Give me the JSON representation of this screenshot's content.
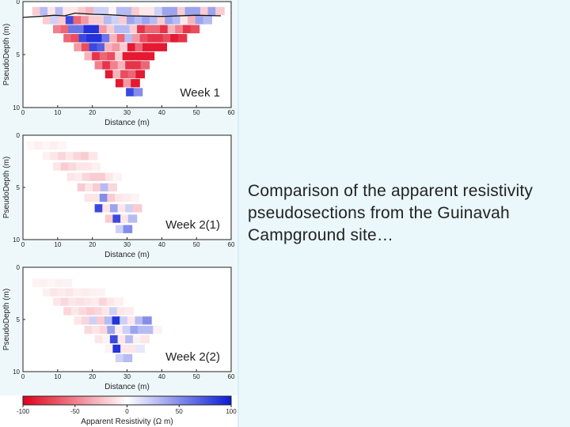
{
  "caption": "Comparison of the apparent resistivity pseudosections from the Guinavah Campground site…",
  "axes": {
    "ylabel": "PseudoDepth (m)",
    "xlabel": "Distance (m)",
    "xticks": [
      "0",
      "10",
      "20",
      "30",
      "40",
      "50",
      "60"
    ],
    "yticks": [
      "0",
      "5",
      "10"
    ]
  },
  "panels": [
    {
      "title": "Week 1",
      "topography": true,
      "rows": [
        {
          "depth": 0.9,
          "start_x": 4.0,
          "values": [
            -20,
            30,
            -10,
            30,
            -10,
            -10,
            -20,
            -30,
            20,
            20,
            -5,
            30,
            30,
            -20,
            -10,
            -10,
            20,
            40,
            40,
            -20,
            40,
            40,
            -20,
            40,
            -20
          ]
        },
        {
          "depth": 1.75,
          "start_x": 7.0,
          "values": [
            -20,
            20,
            -20,
            80,
            -60,
            -40,
            -20,
            -20,
            30,
            20,
            -20,
            40,
            30,
            40,
            30,
            -20,
            40,
            30,
            -10,
            -30,
            40,
            30
          ]
        },
        {
          "depth": 2.6,
          "start_x": 10.0,
          "values": [
            -50,
            -60,
            60,
            60,
            90,
            90,
            -40,
            -20,
            30,
            30,
            -20,
            -80,
            -60,
            -60,
            -80,
            -30,
            -50,
            -80,
            -70
          ]
        },
        {
          "depth": 3.45,
          "start_x": 13.0,
          "values": [
            -60,
            -70,
            80,
            90,
            90,
            60,
            -30,
            -60,
            30,
            -40,
            -70,
            -80,
            -80,
            -70,
            -90,
            -80
          ]
        },
        {
          "depth": 4.3,
          "start_x": 16.0,
          "values": [
            -40,
            -70,
            80,
            70,
            -30,
            -40,
            -20,
            -90,
            -60,
            -90,
            -90,
            -90
          ]
        },
        {
          "depth": 5.15,
          "start_x": 19.0,
          "values": [
            -30,
            -80,
            -60,
            -70,
            -20,
            -90,
            -90,
            -90,
            -90
          ]
        },
        {
          "depth": 6.0,
          "start_x": 22.0,
          "values": [
            -50,
            -80,
            -50,
            -30,
            -80,
            -80,
            -60
          ]
        },
        {
          "depth": 6.85,
          "start_x": 25.0,
          "values": [
            -90,
            -30,
            -70,
            -60,
            -90
          ]
        },
        {
          "depth": 7.7,
          "start_x": 28.0,
          "values": [
            -90,
            -40,
            -90
          ]
        },
        {
          "depth": 8.55,
          "start_x": 31.0,
          "values": [
            80,
            50
          ]
        }
      ]
    },
    {
      "title": "Week 2(1)",
      "topography": false,
      "rows": [
        {
          "depth": 1.0,
          "start_x": 2.5,
          "values": [
            -4,
            -6,
            -4,
            -6,
            -4
          ]
        },
        {
          "depth": 2.0,
          "start_x": 7.0,
          "values": [
            -6,
            -10,
            -16,
            -10,
            -16,
            -20,
            -10
          ]
        },
        {
          "depth": 3.0,
          "start_x": 10.0,
          "values": [
            -10,
            -20,
            -15,
            -10,
            -10,
            -6
          ]
        },
        {
          "depth": 4.0,
          "start_x": 14.0,
          "values": [
            -10,
            -8,
            -16,
            -20,
            -20,
            -10,
            -5
          ]
        },
        {
          "depth": 5.0,
          "start_x": 17.0,
          "values": [
            -20,
            -10,
            -20,
            30,
            -16
          ]
        },
        {
          "depth": 6.0,
          "start_x": 19.0,
          "values": [
            -10,
            -10,
            50,
            -20,
            -10,
            -8,
            -5
          ]
        },
        {
          "depth": 7.0,
          "start_x": 22.0,
          "values": [
            80,
            -10,
            40,
            -10,
            20,
            -20
          ]
        },
        {
          "depth": 8.0,
          "start_x": 25.0,
          "values": [
            -20,
            80,
            -10,
            30
          ]
        },
        {
          "depth": 9.0,
          "start_x": 28.0,
          "values": [
            20,
            50
          ]
        }
      ]
    },
    {
      "title": "Week 2(2)",
      "topography": false,
      "rows": [
        {
          "depth": 1.5,
          "start_x": 4.0,
          "values": [
            -5,
            -6,
            -4,
            -6,
            -5
          ]
        },
        {
          "depth": 2.4,
          "start_x": 7.0,
          "values": [
            -6,
            -10,
            -8,
            -10,
            -6,
            -8,
            -6,
            -5
          ]
        },
        {
          "depth": 3.3,
          "start_x": 10.0,
          "values": [
            -10,
            -15,
            -10,
            -12,
            -10,
            -8,
            -16,
            -10,
            -6
          ]
        },
        {
          "depth": 4.2,
          "start_x": 13.0,
          "values": [
            -16,
            -10,
            -15,
            -20,
            -16,
            -10,
            20,
            -10,
            -8
          ]
        },
        {
          "depth": 5.1,
          "start_x": 16.0,
          "values": [
            -10,
            -16,
            20,
            -20,
            30,
            90,
            20,
            -10,
            30,
            50
          ]
        },
        {
          "depth": 6.0,
          "start_x": 19.0,
          "values": [
            -15,
            -10,
            -16,
            40,
            -8,
            20,
            40,
            30,
            30,
            -5
          ]
        },
        {
          "depth": 6.9,
          "start_x": 22.0,
          "values": [
            -10,
            -5,
            80,
            -10,
            30,
            -6,
            -10
          ]
        },
        {
          "depth": 7.8,
          "start_x": 25.0,
          "values": [
            -5,
            90,
            -10,
            -10,
            10
          ]
        },
        {
          "depth": 8.7,
          "start_x": 28.0,
          "values": [
            20,
            30
          ]
        }
      ]
    }
  ],
  "colorbar": {
    "label": "Apparent Resistivity (Ω m)",
    "ticks": [
      "-100",
      "-50",
      "0",
      "50",
      "100"
    ],
    "min": -100,
    "max": 100,
    "low_color": "#e0001b",
    "mid_color": "#ffffff",
    "high_color": "#0a1bd6"
  },
  "colors": {
    "caption_background": "#eaf7fb",
    "figure_background": "#ffffff",
    "panel_background": "#eef8fb"
  }
}
